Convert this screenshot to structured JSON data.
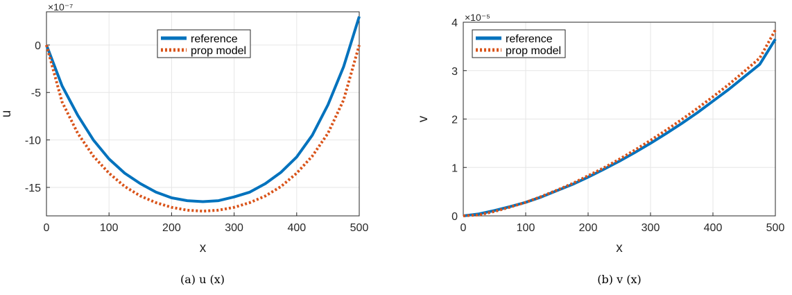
{
  "chart_data": [
    {
      "type": "line",
      "caption": "(a)  u (x)",
      "xlabel": "x",
      "ylabel": "u",
      "exponent": "×10⁻⁷",
      "xlim": [
        0,
        500
      ],
      "ylim": [
        -18,
        3.5
      ],
      "xticks": [
        0,
        100,
        200,
        300,
        400,
        500
      ],
      "yticks": [
        -15,
        -10,
        -5,
        0
      ],
      "x_tick_labels": [
        "0",
        "100",
        "200",
        "300",
        "400",
        "500"
      ],
      "y_tick_labels": [
        "-15",
        "-10",
        "-5",
        "0"
      ],
      "grid": true,
      "legend_position": "top-center",
      "series": [
        {
          "name": "reference",
          "style": "solid",
          "color": "#0072BD",
          "x": [
            0,
            25,
            50,
            75,
            100,
            125,
            150,
            175,
            200,
            225,
            250,
            275,
            300,
            325,
            350,
            375,
            400,
            425,
            450,
            475,
            500
          ],
          "values": [
            0,
            -4.3,
            -7.4,
            -10.0,
            -12.0,
            -13.5,
            -14.6,
            -15.5,
            -16.1,
            -16.4,
            -16.5,
            -16.4,
            -16.0,
            -15.5,
            -14.6,
            -13.4,
            -11.8,
            -9.5,
            -6.3,
            -2.3,
            3.0
          ]
        },
        {
          "name": "prop model",
          "style": "dotted",
          "color": "#D95319",
          "x": [
            0,
            25,
            50,
            75,
            100,
            125,
            150,
            175,
            200,
            225,
            250,
            275,
            300,
            325,
            350,
            375,
            400,
            425,
            450,
            475,
            500
          ],
          "values": [
            0,
            -6.0,
            -9.3,
            -11.7,
            -13.5,
            -14.9,
            -15.9,
            -16.6,
            -17.1,
            -17.4,
            -17.5,
            -17.4,
            -17.1,
            -16.6,
            -15.9,
            -14.9,
            -13.5,
            -11.7,
            -9.3,
            -5.8,
            0
          ]
        }
      ]
    },
    {
      "type": "line",
      "caption": "(b)  v (x)",
      "xlabel": "x",
      "ylabel": "v",
      "exponent": "×10⁻⁵",
      "xlim": [
        0,
        500
      ],
      "ylim": [
        0,
        4
      ],
      "xticks": [
        0,
        100,
        200,
        300,
        400,
        500
      ],
      "yticks": [
        0,
        1,
        2,
        3,
        4
      ],
      "x_tick_labels": [
        "0",
        "100",
        "200",
        "300",
        "400",
        "500"
      ],
      "y_tick_labels": [
        "0",
        "1",
        "2",
        "3",
        "4"
      ],
      "grid": true,
      "legend_position": "top-left",
      "series": [
        {
          "name": "reference",
          "style": "solid",
          "color": "#0072BD",
          "x": [
            0,
            25,
            50,
            75,
            100,
            125,
            150,
            175,
            200,
            225,
            250,
            275,
            300,
            325,
            350,
            375,
            400,
            425,
            450,
            475,
            500
          ],
          "values": [
            0,
            0.04,
            0.11,
            0.19,
            0.28,
            0.39,
            0.52,
            0.65,
            0.8,
            0.96,
            1.13,
            1.31,
            1.5,
            1.7,
            1.91,
            2.13,
            2.37,
            2.61,
            2.87,
            3.13,
            3.65
          ]
        },
        {
          "name": "prop model",
          "style": "dotted",
          "color": "#D95319",
          "x": [
            0,
            25,
            50,
            75,
            100,
            125,
            150,
            175,
            200,
            225,
            250,
            275,
            300,
            325,
            350,
            375,
            400,
            425,
            450,
            475,
            500
          ],
          "values": [
            0,
            0.02,
            0.09,
            0.18,
            0.28,
            0.4,
            0.53,
            0.67,
            0.83,
            0.99,
            1.17,
            1.36,
            1.56,
            1.77,
            1.99,
            2.22,
            2.46,
            2.71,
            2.98,
            3.26,
            3.84
          ]
        }
      ]
    }
  ]
}
